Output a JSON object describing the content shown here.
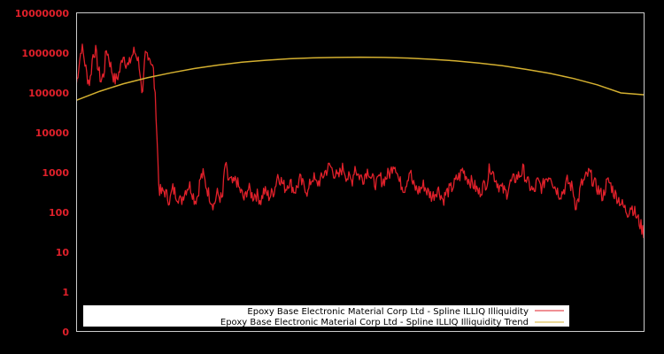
{
  "chart_data": {
    "type": "line",
    "title": "",
    "xlabel": "",
    "ylabel": "",
    "yscale": "log",
    "ylim": [
      0,
      10000000
    ],
    "y_ticks": [
      "10000000",
      "1000000",
      "100000",
      "10000",
      "1000",
      "100",
      "10",
      "1",
      "0"
    ],
    "grid": false,
    "legend_position": "bottom",
    "colors": {
      "background": "#000000",
      "axis": "#cccccc",
      "tick_label": "#e0202a",
      "series": "#e0202a",
      "trend": "#d4b030"
    },
    "series": [
      {
        "name": "Epoxy Base Electronic Material Corp Ltd - Spline ILLIQ Illiquidity",
        "color": "#e0202a",
        "values": [
          150000,
          500000,
          1500000,
          700000,
          250000,
          180000,
          900000,
          1200000,
          400000,
          200000,
          300000,
          1300000,
          700000,
          350000,
          200000,
          250000,
          400000,
          1000000,
          600000,
          450000,
          800000,
          1100000,
          900000,
          500000,
          50000,
          900000,
          1000000,
          700000,
          350000,
          30000,
          400,
          300,
          350,
          250,
          200,
          400,
          300,
          250,
          180,
          300,
          400,
          500,
          350,
          200,
          250,
          700,
          900,
          500,
          300,
          200,
          150,
          300,
          250,
          200,
          1800,
          700,
          600,
          500,
          700,
          400,
          300,
          200,
          400,
          350,
          250,
          300,
          250,
          200,
          350,
          300,
          250,
          300,
          400,
          900,
          700,
          500,
          400,
          600,
          500,
          350,
          400,
          700,
          500,
          450,
          300,
          600,
          800,
          500,
          600,
          700,
          1000,
          1200,
          1500,
          1100,
          900,
          700,
          1200,
          1300,
          800,
          700,
          600,
          1500,
          900,
          800,
          700,
          1000,
          1200,
          700,
          600,
          500,
          800,
          600,
          700,
          900,
          1000,
          1800,
          1400,
          600,
          500,
          400,
          700,
          1200,
          500,
          400,
          350,
          400,
          500,
          350,
          300,
          250,
          300,
          400,
          300,
          200,
          300,
          350,
          400,
          500,
          700,
          800,
          1200,
          900,
          700,
          600,
          500,
          400,
          300,
          400,
          500,
          600,
          1500,
          1000,
          700,
          500,
          400,
          350,
          300,
          500,
          600,
          700,
          800,
          900,
          1200,
          700,
          500,
          400,
          300,
          600,
          500,
          400,
          700,
          800,
          900,
          500,
          400,
          300,
          300,
          400,
          600,
          500,
          400,
          150,
          200,
          500,
          600,
          800,
          1000,
          700,
          500,
          400,
          300,
          250,
          500,
          600,
          450,
          300,
          250,
          200,
          150,
          120,
          100,
          150,
          120,
          80,
          60,
          40,
          30
        ],
        "x_range_note": "full date range of plot, unlabeled x-axis"
      },
      {
        "name": "Epoxy Base Electronic Material Corp Ltd - Spline ILLIQ Illiquidity Trend",
        "color": "#d4b030",
        "values": [
          65000,
          110000,
          170000,
          240000,
          320000,
          410000,
          500000,
          590000,
          660000,
          720000,
          760000,
          780000,
          790000,
          780000,
          750000,
          700000,
          640000,
          560000,
          480000,
          390000,
          310000,
          230000,
          160000,
          100000,
          90000
        ]
      }
    ]
  },
  "legend": {
    "items": [
      {
        "label": "Epoxy Base Electronic Material Corp Ltd - Spline ILLIQ Illiquidity",
        "color": "#e0202a"
      },
      {
        "label": "Epoxy Base Electronic Material Corp Ltd - Spline ILLIQ Illiquidity Trend",
        "color": "#d4b030"
      }
    ]
  }
}
